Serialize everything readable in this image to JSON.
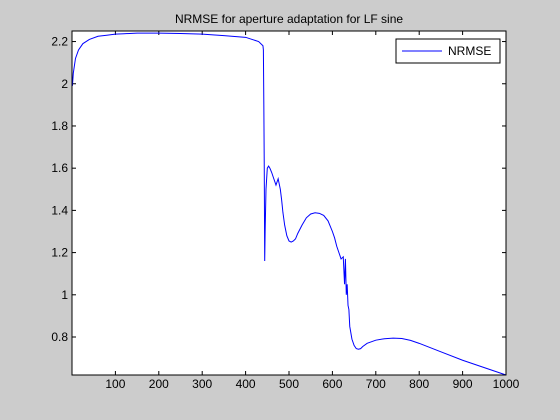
{
  "chart_data": {
    "type": "line",
    "title": "NRMSE for aperture adaptation for LF sine",
    "xlabel": "",
    "ylabel": "",
    "xlim": [
      0,
      1000
    ],
    "ylim": [
      0.62,
      2.25
    ],
    "xticks": [
      100,
      200,
      300,
      400,
      500,
      600,
      700,
      800,
      900,
      1000
    ],
    "yticks": [
      0.8,
      1,
      1.2,
      1.4,
      1.6,
      1.8,
      2,
      2.2
    ],
    "ytick_labels": [
      "0.8",
      "1",
      "1.2",
      "1.4",
      "1.6",
      "1.8",
      "2",
      "2.2"
    ],
    "grid": false,
    "legend": {
      "position": "top-right",
      "entries": [
        "NRMSE"
      ]
    },
    "series": [
      {
        "name": "NRMSE",
        "color": "#0000ff",
        "x": [
          1,
          3,
          8,
          15,
          25,
          40,
          60,
          80,
          100,
          120,
          150,
          200,
          250,
          300,
          350,
          400,
          430,
          440,
          441,
          442,
          443,
          444,
          445,
          447,
          450,
          453,
          456,
          460,
          465,
          470,
          475,
          478,
          480,
          483,
          486,
          490,
          495,
          500,
          505,
          510,
          515,
          520,
          530,
          540,
          550,
          560,
          570,
          580,
          590,
          600,
          605,
          610,
          615,
          620,
          625,
          628,
          630,
          632,
          634,
          636,
          638,
          640,
          645,
          650,
          655,
          660,
          665,
          670,
          680,
          700,
          720,
          740,
          760,
          780,
          800,
          850,
          900,
          950,
          1000
        ],
        "values": [
          1.99,
          2.05,
          2.12,
          2.16,
          2.19,
          2.21,
          2.225,
          2.23,
          2.235,
          2.237,
          2.24,
          2.24,
          2.238,
          2.235,
          2.228,
          2.22,
          2.2,
          2.18,
          2.16,
          1.9,
          1.6,
          1.16,
          1.3,
          1.5,
          1.6,
          1.61,
          1.6,
          1.58,
          1.55,
          1.52,
          1.55,
          1.52,
          1.5,
          1.45,
          1.39,
          1.33,
          1.28,
          1.255,
          1.25,
          1.255,
          1.265,
          1.29,
          1.33,
          1.365,
          1.383,
          1.389,
          1.386,
          1.376,
          1.35,
          1.3,
          1.27,
          1.23,
          1.2,
          1.17,
          1.18,
          1.05,
          1.17,
          1.0,
          1.05,
          0.95,
          0.93,
          0.85,
          0.79,
          0.76,
          0.745,
          0.742,
          0.745,
          0.755,
          0.77,
          0.785,
          0.792,
          0.795,
          0.793,
          0.784,
          0.77,
          0.73,
          0.69,
          0.655,
          0.62
        ]
      }
    ]
  }
}
